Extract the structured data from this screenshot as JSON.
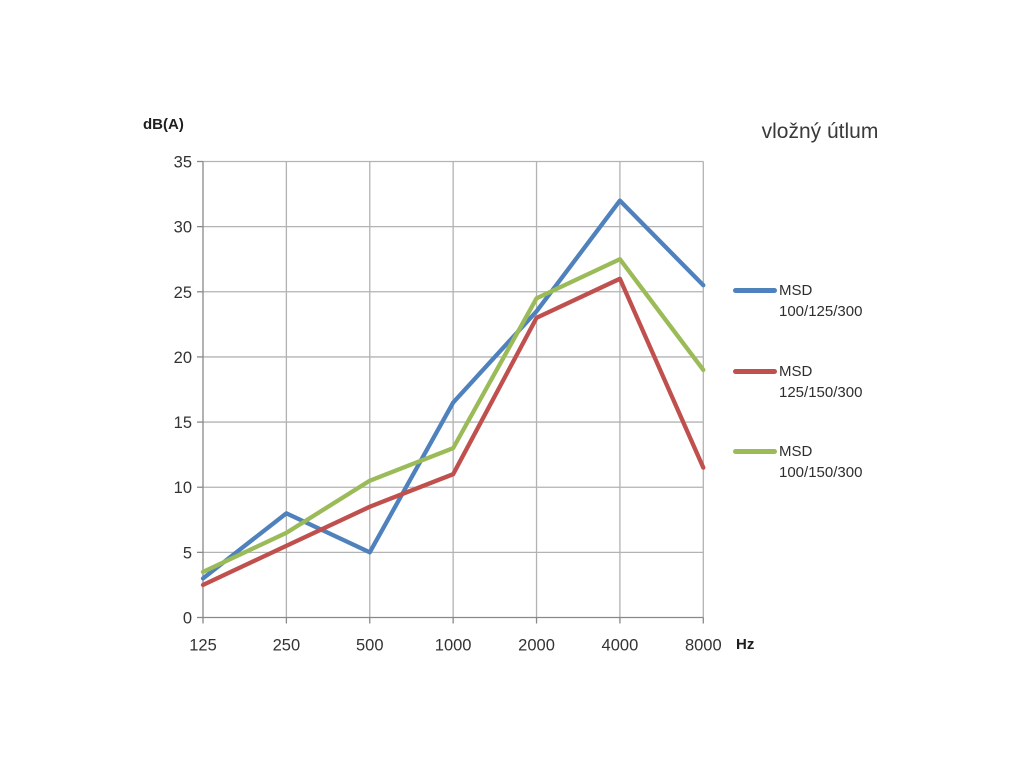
{
  "chart": {
    "title": "vložný útlum",
    "y_axis_title": "dB(A)",
    "x_axis_unit": "Hz"
  },
  "chart_data": {
    "type": "line",
    "title": "vložný útlum",
    "xlabel": "Hz",
    "ylabel": "dB(A)",
    "categories": [
      "125",
      "250",
      "500",
      "1000",
      "2000",
      "4000",
      "8000"
    ],
    "series": [
      {
        "name": "MSD 100/125/300",
        "color": "#4F81BD",
        "values": [
          3,
          8,
          5,
          16.5,
          23.5,
          32,
          25.5
        ]
      },
      {
        "name": "MSD 125/150/300",
        "color": "#C0504D",
        "values": [
          2.5,
          5.5,
          8.5,
          11,
          23,
          26,
          11.5
        ]
      },
      {
        "name": "MSD 100/150/300",
        "color": "#9BBB59",
        "values": [
          3.5,
          6.5,
          10.5,
          13,
          24.5,
          27.5,
          19
        ]
      }
    ],
    "ylim": [
      0,
      35
    ],
    "ytick_step": 5,
    "yticks": [
      0,
      5,
      10,
      15,
      20,
      25,
      30,
      35
    ],
    "grid": true,
    "legend_position": "right",
    "colors": {
      "gridline": "#b3b3b3",
      "axis": "#898989",
      "tick_label": "#333333",
      "background": "#ffffff"
    }
  }
}
